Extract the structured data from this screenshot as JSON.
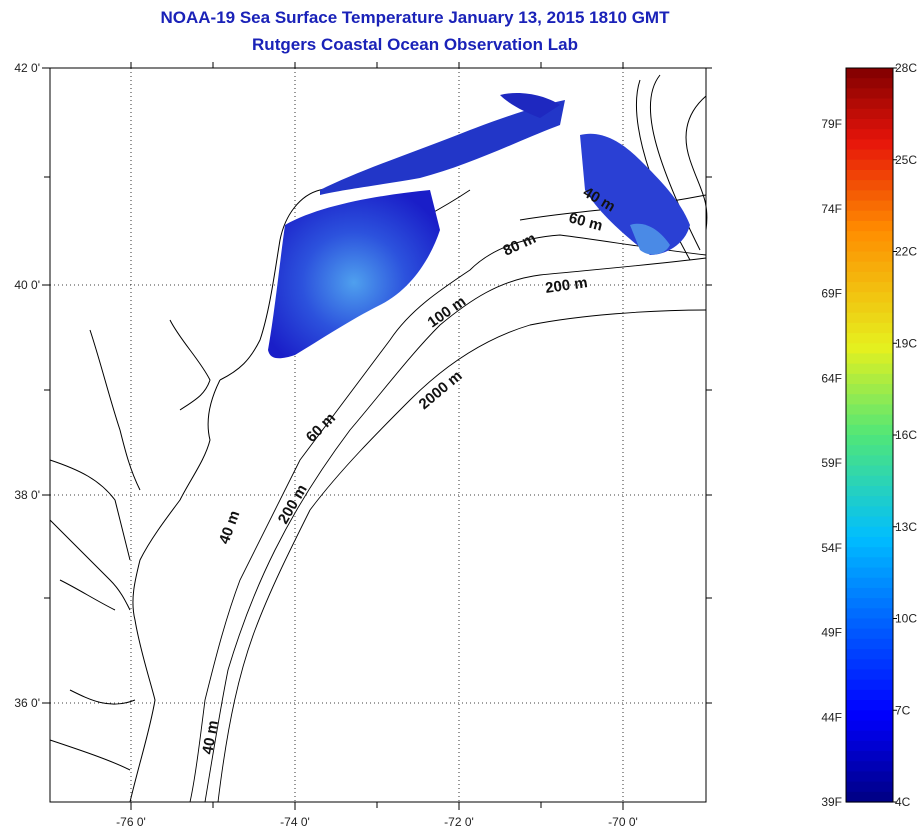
{
  "title": "NOAA-19 Sea Surface Temperature January 13, 2015 1810 GMT",
  "subtitle": "Rutgers Coastal Ocean Observation Lab",
  "map": {
    "lat_ticks": [
      {
        "value": 42,
        "label": "42 0'"
      },
      {
        "value": 40,
        "label": "40 0'"
      },
      {
        "value": 38,
        "label": "38 0'"
      },
      {
        "value": 36,
        "label": "36 0'"
      }
    ],
    "lon_ticks": [
      {
        "value": -76,
        "label": "-76 0'"
      },
      {
        "value": -74,
        "label": "-74 0'"
      },
      {
        "value": -72,
        "label": "-72 0'"
      },
      {
        "value": -70,
        "label": "-70 0'"
      }
    ],
    "lat_range": [
      35,
      42.05
    ],
    "lon_range": [
      -77,
      -69
    ],
    "grid": "dotted",
    "depth_labels": [
      "40 m",
      "60 m",
      "80 m",
      "200 m",
      "100 m",
      "2000 m",
      "60 m",
      "40 m",
      "200 m",
      "40 m"
    ]
  },
  "colorbar": {
    "range_c": [
      4,
      28
    ],
    "celsius_labels": [
      "28C",
      "25C",
      "22C",
      "19C",
      "16C",
      "13C",
      "10C",
      "7C",
      "4C"
    ],
    "fahrenheit_labels": [
      "79F",
      "74F",
      "69F",
      "64F",
      "59F",
      "54F",
      "49F",
      "44F",
      "39F"
    ]
  }
}
